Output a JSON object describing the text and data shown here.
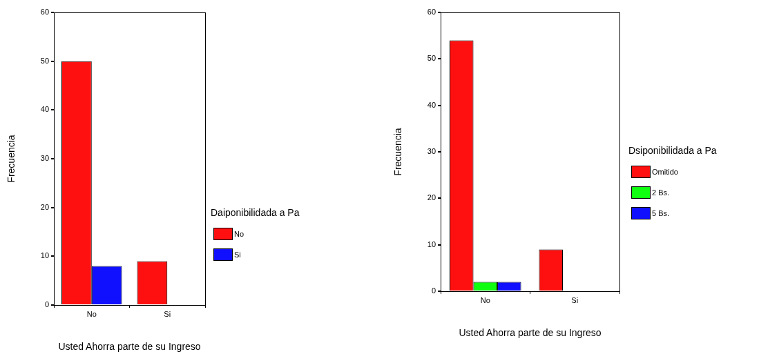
{
  "chart_data": [
    {
      "type": "bar",
      "xlabel": "Usted Ahorra parte de su Ingreso",
      "ylabel": "Frecuencia",
      "legend_title": "Daiponibilidada a Pa",
      "categories": [
        "No",
        "Si"
      ],
      "ylim": [
        0,
        60
      ],
      "yticks": [
        0,
        10,
        20,
        30,
        40,
        50,
        60
      ],
      "grid": false,
      "legend": "right",
      "series": [
        {
          "name": "No",
          "color": "#ff1010",
          "values": [
            50,
            9
          ]
        },
        {
          "name": "Si",
          "color": "#1010ff",
          "values": [
            8,
            0
          ]
        }
      ]
    },
    {
      "type": "bar",
      "xlabel": "Usted Ahorra parte de su Ingreso",
      "ylabel": "Frecuencia",
      "legend_title": "Dsiponibilidada a Pa",
      "categories": [
        "No",
        "Si"
      ],
      "ylim": [
        0,
        60
      ],
      "yticks": [
        0,
        10,
        20,
        30,
        40,
        50,
        60
      ],
      "grid": false,
      "legend": "right",
      "series": [
        {
          "name": "Omitido",
          "color": "#ff1010",
          "values": [
            54,
            9
          ]
        },
        {
          "name": "2 Bs.",
          "color": "#10ff10",
          "values": [
            2,
            0
          ]
        },
        {
          "name": "5 Bs.",
          "color": "#1010ff",
          "values": [
            2,
            0
          ]
        }
      ]
    }
  ]
}
